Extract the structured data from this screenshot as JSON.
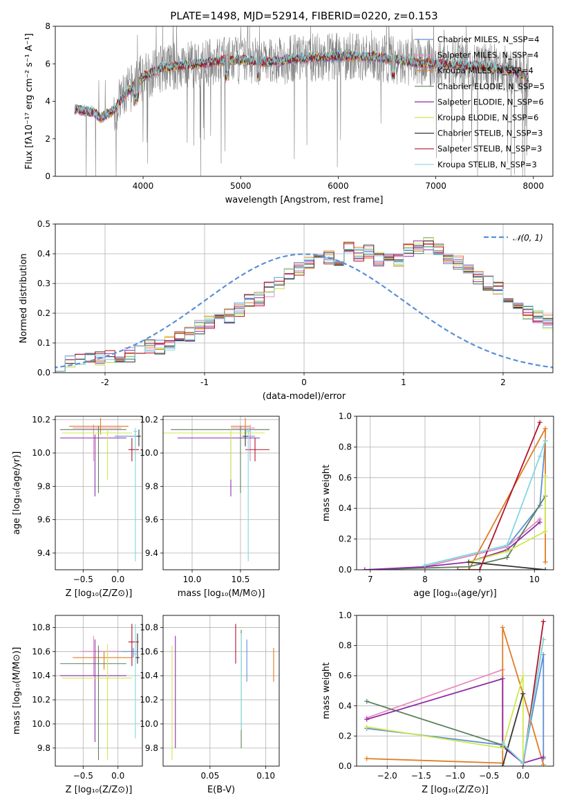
{
  "chart_data": [
    {
      "type": "line",
      "title": "PLATE=1498, MJD=52914, FIBERID=0220, z=0.153",
      "xlabel": "wavelength [Angstrom, rest frame]",
      "ylabel": "Flux [fλ10⁻¹⁷ erg cm⁻² s⁻¹ A⁻¹]",
      "xlim": [
        3100,
        8200
      ],
      "ylim": [
        0,
        8
      ],
      "xticks": [
        4000,
        5000,
        6000,
        7000,
        8000
      ],
      "yticks": [
        0,
        2,
        4,
        6,
        8
      ],
      "legend_position": "top-right",
      "spectrum_anchor_x": [
        3300,
        3500,
        3560,
        3700,
        3800,
        4000,
        4200,
        4400,
        4600,
        4800,
        5000,
        5200,
        5400,
        5600,
        5800,
        6000,
        6200,
        6400,
        6600,
        6800,
        7000,
        7200,
        7400,
        7600,
        7800,
        7950
      ],
      "spectrum_anchor_y": [
        3.6,
        3.4,
        3.1,
        3.5,
        4.3,
        5.3,
        5.8,
        5.9,
        6.0,
        6.15,
        6.2,
        6.1,
        6.15,
        6.3,
        6.35,
        6.4,
        6.4,
        6.35,
        6.2,
        6.05,
        6.0,
        5.95,
        5.85,
        5.8,
        5.6,
        5.2
      ],
      "series": [
        {
          "name": "Chabrier MILES, N_SSP=4",
          "color": "#5a8fd6"
        },
        {
          "name": "Salpeter MILES, N_SSP=4",
          "color": "#e88bbf"
        },
        {
          "name": "Kroupa MILES, N_SSP=4",
          "color": "#e07b24"
        },
        {
          "name": "Chabrier ELODIE, N_SSP=5",
          "color": "#5b7f5e"
        },
        {
          "name": "Salpeter ELODIE, N_SSP=6",
          "color": "#8e2ca8"
        },
        {
          "name": "Kroupa ELODIE, N_SSP=6",
          "color": "#cde84a"
        },
        {
          "name": "Chabrier STELIB, N_SSP=3",
          "color": "#333333"
        },
        {
          "name": "Salpeter STELIB, N_SSP=3",
          "color": "#b3122a"
        },
        {
          "name": "Kroupa STELIB, N_SSP=3",
          "color": "#7fd8e0"
        }
      ],
      "data_color": "#808080"
    },
    {
      "type": "line",
      "xlabel": "(data-model)/error",
      "ylabel": "Normed distribution",
      "xlim": [
        -2.5,
        2.5
      ],
      "ylim": [
        0,
        0.5
      ],
      "xticks": [
        -2,
        -1,
        0,
        1,
        2
      ],
      "yticks": [
        0.0,
        0.1,
        0.2,
        0.3,
        0.4,
        0.5
      ],
      "grid": true,
      "legend_position": "top-right",
      "reference_curve": {
        "name": "𝒩(0, 1)",
        "color": "#5a8fd6",
        "style": "dashed"
      },
      "bin_width": 0.1,
      "bin_start": -2.5,
      "histogram_values": [
        0.03,
        0.035,
        0.04,
        0.05,
        0.045,
        0.055,
        0.045,
        0.06,
        0.07,
        0.09,
        0.085,
        0.1,
        0.12,
        0.13,
        0.155,
        0.17,
        0.175,
        0.19,
        0.21,
        0.24,
        0.25,
        0.28,
        0.3,
        0.33,
        0.35,
        0.37,
        0.38,
        0.39,
        0.35,
        0.42,
        0.4,
        0.41,
        0.38,
        0.39,
        0.38,
        0.41,
        0.42,
        0.43,
        0.41,
        0.39,
        0.37,
        0.35,
        0.32,
        0.3,
        0.28,
        0.25,
        0.22,
        0.2,
        0.185,
        0.17,
        0.155,
        0.14,
        0.12,
        0.1,
        0.09,
        0.085,
        0.075,
        0.07,
        0.055,
        0.05,
        0.04,
        0.035,
        0.03,
        0.028,
        0.025,
        0.025,
        0.02,
        0.02,
        0.02,
        0.02,
        0.02
      ],
      "series_colors": [
        "#5a8fd6",
        "#e88bbf",
        "#e07b24",
        "#5b7f5e",
        "#8e2ca8",
        "#cde84a",
        "#333333",
        "#b3122a",
        "#7fd8e0"
      ]
    },
    {
      "type": "scatter",
      "xlabel": "Z [log₁₀(Z/Z⊙)]",
      "ylabel": "age  [log₁₀(age/yr)]",
      "xlim": [
        -0.9,
        0.35
      ],
      "ylim": [
        9.3,
        10.22
      ],
      "xticks": [
        -0.5,
        0.0
      ],
      "xticklabels": [
        "−0.5",
        "0.0"
      ],
      "yticks": [
        9.4,
        9.6,
        9.8,
        10.0,
        10.2
      ],
      "grid": true,
      "points": [
        {
          "x": 0.25,
          "y": 10.1,
          "x_err": [
            0.3,
            0.05
          ],
          "y_err": [
            0.15,
            0.03
          ],
          "color": "#5a8fd6"
        },
        {
          "x": -0.35,
          "y": 10.15,
          "x_err": [
            0.3,
            0.4
          ],
          "y_err": [
            0.2,
            0.02
          ],
          "color": "#e88bbf"
        },
        {
          "x": -0.25,
          "y": 10.16,
          "x_err": [
            0.45,
            0.4
          ],
          "y_err": [
            0.05,
            0.05
          ],
          "color": "#e07b24"
        },
        {
          "x": -0.28,
          "y": 10.14,
          "x_err": [
            0.55,
            0.4
          ],
          "y_err": [
            0.38,
            0.02
          ],
          "color": "#5b7f5e"
        },
        {
          "x": -0.33,
          "y": 10.09,
          "x_err": [
            0.5,
            0.45
          ],
          "y_err": [
            0.35,
            0.02
          ],
          "color": "#8e2ca8"
        },
        {
          "x": -0.15,
          "y": 10.12,
          "x_err": [
            0.65,
            0.35
          ],
          "y_err": [
            0.28,
            0.02
          ],
          "color": "#cde84a"
        },
        {
          "x": 0.3,
          "y": 10.1,
          "x_err": [
            0.03,
            0.03
          ],
          "y_err": [
            0.06,
            0.04
          ],
          "color": "#333333"
        },
        {
          "x": 0.2,
          "y": 10.02,
          "x_err": [
            0.05,
            0.1
          ],
          "y_err": [
            0.07,
            0.07
          ],
          "color": "#b3122a"
        },
        {
          "x": 0.25,
          "y": 10.13,
          "x_err": [
            0.03,
            0.03
          ],
          "y_err": [
            0.78,
            0.02
          ],
          "color": "#7fd8e0"
        }
      ]
    },
    {
      "type": "scatter",
      "xlabel": "mass [log₁₀(M/M⊙)]",
      "xlim": [
        9.7,
        10.9
      ],
      "ylim": [
        9.3,
        10.22
      ],
      "xticks": [
        10.0,
        10.5
      ],
      "xticklabels": [
        "10.0",
        "10.5"
      ],
      "yticks": [
        9.4,
        9.6,
        9.8,
        10.0,
        10.2
      ],
      "grid": true,
      "points": [
        {
          "x": 10.6,
          "y": 10.1,
          "x_err": [
            0.05,
            0.05
          ],
          "y_err": [
            0.15,
            0.03
          ],
          "color": "#5a8fd6"
        },
        {
          "x": 10.6,
          "y": 10.15,
          "x_err": [
            0.2,
            0.05
          ],
          "y_err": [
            0.2,
            0.02
          ],
          "color": "#e88bbf"
        },
        {
          "x": 10.55,
          "y": 10.16,
          "x_err": [
            0.15,
            0.05
          ],
          "y_err": [
            0.05,
            0.05
          ],
          "color": "#e07b24"
        },
        {
          "x": 10.5,
          "y": 10.14,
          "x_err": [
            0.72,
            0.3
          ],
          "y_err": [
            0.38,
            0.02
          ],
          "color": "#5b7f5e"
        },
        {
          "x": 10.4,
          "y": 10.09,
          "x_err": [
            0.55,
            0.3
          ],
          "y_err": [
            0.35,
            0.02
          ],
          "color": "#8e2ca8"
        },
        {
          "x": 10.4,
          "y": 10.12,
          "x_err": [
            0.7,
            0.35
          ],
          "y_err": [
            0.28,
            0.02
          ],
          "color": "#cde84a"
        },
        {
          "x": 10.55,
          "y": 10.1,
          "x_err": [
            0.03,
            0.03
          ],
          "y_err": [
            0.06,
            0.04
          ],
          "color": "#333333"
        },
        {
          "x": 10.65,
          "y": 10.02,
          "x_err": [
            0.1,
            0.15
          ],
          "y_err": [
            0.07,
            0.07
          ],
          "color": "#b3122a"
        },
        {
          "x": 10.58,
          "y": 10.13,
          "x_err": [
            0.03,
            0.03
          ],
          "y_err": [
            0.78,
            0.02
          ],
          "color": "#7fd8e0"
        }
      ]
    },
    {
      "type": "line",
      "xlabel": "age  [log₁₀(age/yr)]",
      "ylabel": "mass weight",
      "xlim": [
        6.75,
        10.35
      ],
      "ylim": [
        0,
        1.0
      ],
      "xticks": [
        7,
        8,
        9,
        10
      ],
      "yticks": [
        0.0,
        0.2,
        0.4,
        0.6,
        0.8,
        1.0
      ],
      "grid": true,
      "series": [
        {
          "color": "#5a8fd6",
          "x": [
            8.0,
            9.5,
            10.1,
            10.2
          ],
          "y": [
            0.02,
            0.15,
            0.42,
            0.84
          ]
        },
        {
          "color": "#e88bbf",
          "x": [
            8.0,
            9.5,
            10.1
          ],
          "y": [
            0.02,
            0.15,
            0.33
          ]
        },
        {
          "color": "#e07b24",
          "x": [
            8.8,
            10.2,
            10.2
          ],
          "y": [
            0.0,
            0.92,
            0.05
          ]
        },
        {
          "color": "#5b7f5e",
          "x": [
            6.9,
            8.8,
            9.5,
            10.2
          ],
          "y": [
            0.0,
            0.02,
            0.08,
            0.48
          ]
        },
        {
          "color": "#8e2ca8",
          "x": [
            6.9,
            8.0,
            8.8,
            9.5,
            10.1
          ],
          "y": [
            0.0,
            0.02,
            0.05,
            0.13,
            0.31
          ]
        },
        {
          "color": "#cde84a",
          "x": [
            8.8,
            9.5,
            10.2,
            10.2
          ],
          "y": [
            0.05,
            0.12,
            0.25,
            0.61
          ]
        },
        {
          "color": "#333333",
          "x": [
            8.8,
            10.2
          ],
          "y": [
            0.05,
            0.0
          ]
        },
        {
          "color": "#b3122a",
          "x": [
            8.6,
            9.0,
            10.1
          ],
          "y": [
            0.0,
            0.0,
            0.96
          ]
        },
        {
          "color": "#7fd8e0",
          "x": [
            8.0,
            9.5,
            10.1,
            10.2
          ],
          "y": [
            0.03,
            0.16,
            0.74,
            0.84
          ]
        }
      ]
    },
    {
      "type": "scatter",
      "xlabel": "Z [log₁₀(Z/Z⊙)]",
      "ylabel": "mass [log₁₀(M/M⊙)]",
      "xlim": [
        -0.9,
        0.35
      ],
      "ylim": [
        9.65,
        10.9
      ],
      "xticks": [
        -0.5,
        0.0
      ],
      "xticklabels": [
        "−0.5",
        "0.0"
      ],
      "yticks": [
        9.8,
        10.0,
        10.2,
        10.4,
        10.6,
        10.8
      ],
      "grid": true,
      "points": [
        {
          "x": 0.22,
          "y": 10.6,
          "x_err": [
            0.72,
            0.05
          ],
          "y_err": [
            0.05,
            0.03
          ],
          "color": "#5a8fd6"
        },
        {
          "x": -0.35,
          "y": 10.6,
          "x_err": [
            0.2,
            0.4
          ],
          "y_err": [
            0.2,
            0.13
          ],
          "color": "#e88bbf"
        },
        {
          "x": -0.2,
          "y": 10.55,
          "x_err": [
            0.45,
            0.4
          ],
          "y_err": [
            0.1,
            0.05
          ],
          "color": "#e07b24"
        },
        {
          "x": -0.28,
          "y": 10.5,
          "x_err": [
            0.55,
            0.4
          ],
          "y_err": [
            0.8,
            0.15
          ],
          "color": "#5b7f5e"
        },
        {
          "x": -0.33,
          "y": 10.4,
          "x_err": [
            0.5,
            0.45
          ],
          "y_err": [
            0.55,
            0.3
          ],
          "color": "#8e2ca8"
        },
        {
          "x": -0.15,
          "y": 10.38,
          "x_err": [
            0.65,
            0.35
          ],
          "y_err": [
            0.68,
            0.28
          ],
          "color": "#cde84a"
        },
        {
          "x": 0.28,
          "y": 10.55,
          "x_err": [
            0.03,
            0.03
          ],
          "y_err": [
            0.05,
            0.2
          ],
          "color": "#333333"
        },
        {
          "x": 0.2,
          "y": 10.68,
          "x_err": [
            0.05,
            0.1
          ],
          "y_err": [
            0.2,
            0.15
          ],
          "color": "#b3122a"
        },
        {
          "x": 0.25,
          "y": 10.58,
          "x_err": [
            0.03,
            0.03
          ],
          "y_err": [
            0.7,
            0.25
          ],
          "color": "#7fd8e0"
        }
      ]
    },
    {
      "type": "scatter",
      "xlabel": "E(B-V)",
      "xlim": [
        0.008,
        0.112
      ],
      "ylim": [
        9.65,
        10.9
      ],
      "xticks": [
        0.05,
        0.1
      ],
      "xticklabels": [
        "0.05",
        "0.10"
      ],
      "yticks": [
        9.8,
        10.0,
        10.2,
        10.4,
        10.6,
        10.8
      ],
      "grid": true,
      "points": [
        {
          "x": 0.083,
          "y": 10.6,
          "x_err": [
            0,
            0
          ],
          "y_err": [
            0.25,
            0.1
          ],
          "color": "#5a8fd6"
        },
        {
          "x": 0.019,
          "y": 10.6,
          "x_err": [
            0,
            0
          ],
          "y_err": [
            0.8,
            0.13
          ],
          "color": "#8e2ca8"
        },
        {
          "x": 0.107,
          "y": 10.55,
          "x_err": [
            0,
            0
          ],
          "y_err": [
            0.2,
            0.08
          ],
          "color": "#e07b24"
        },
        {
          "x": 0.078,
          "y": 10.6,
          "x_err": [
            0,
            0
          ],
          "y_err": [
            0.8,
            0.18
          ],
          "color": "#5b7f5e"
        },
        {
          "x": 0.016,
          "y": 10.4,
          "x_err": [
            0,
            0
          ],
          "y_err": [
            0.7,
            0.25
          ],
          "color": "#cde84a"
        },
        {
          "x": 0.073,
          "y": 10.7,
          "x_err": [
            0,
            0
          ],
          "y_err": [
            0.2,
            0.13
          ],
          "color": "#b3122a"
        },
        {
          "x": 0.078,
          "y": 10.6,
          "x_err": [
            0,
            0
          ],
          "y_err": [
            0.65,
            0.15
          ],
          "color": "#7fd8e0"
        }
      ]
    },
    {
      "type": "line",
      "xlabel": "Z [log₁₀(Z/Z⊙)]",
      "ylabel": "mass weight",
      "xlim": [
        -2.45,
        0.45
      ],
      "ylim": [
        0,
        1.0
      ],
      "xticks": [
        -2.0,
        -1.5,
        -1.0,
        -0.5,
        0.0
      ],
      "xticklabels": [
        "−2.0",
        "−1.5",
        "−1.0",
        "−0.5",
        "0.0"
      ],
      "yticks": [
        0.0,
        0.2,
        0.4,
        0.6,
        0.8,
        1.0
      ],
      "grid": true,
      "series": [
        {
          "color": "#5a8fd6",
          "x": [
            -2.3,
            -0.3,
            0.0,
            0.3,
            0.3
          ],
          "y": [
            0.25,
            0.14,
            0.02,
            0.74,
            0.05
          ]
        },
        {
          "color": "#e88bbf",
          "x": [
            -2.3,
            -0.3,
            -0.3,
            0.0
          ],
          "y": [
            0.32,
            0.64,
            0.15,
            0.02
          ]
        },
        {
          "color": "#e07b24",
          "x": [
            -2.3,
            -0.3,
            -0.3,
            0.0,
            0.3
          ],
          "y": [
            0.05,
            0.02,
            0.92,
            0.48,
            0.01
          ]
        },
        {
          "color": "#5b7f5e",
          "x": [
            -2.3,
            -0.3,
            0.0,
            0.3
          ],
          "y": [
            0.43,
            0.14,
            0.02,
            0.84
          ]
        },
        {
          "color": "#8e2ca8",
          "x": [
            -2.3,
            -0.3,
            -0.3,
            0.0,
            0.3
          ],
          "y": [
            0.31,
            0.58,
            0.13,
            0.02,
            0.06
          ]
        },
        {
          "color": "#cde84a",
          "x": [
            -2.3,
            -0.3,
            0.0,
            0.0
          ],
          "y": [
            0.26,
            0.12,
            0.6,
            0.02
          ]
        },
        {
          "color": "#333333",
          "x": [
            -0.3,
            0.0
          ],
          "y": [
            0.0,
            0.48
          ]
        },
        {
          "color": "#b3122a",
          "x": [
            0.0,
            0.3
          ],
          "y": [
            0.0,
            0.96
          ]
        },
        {
          "color": "#7fd8e0",
          "x": [
            -0.3,
            0.0,
            0.3
          ],
          "y": [
            0.15,
            0.02,
            0.84
          ]
        }
      ]
    }
  ]
}
